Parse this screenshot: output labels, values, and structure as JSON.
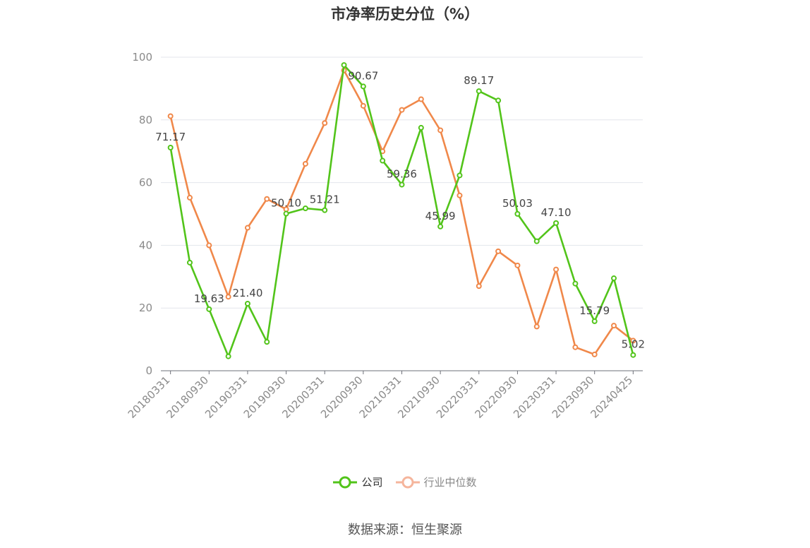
{
  "chart_data": {
    "type": "line",
    "title": "市净率历史分位（%）",
    "ylim": [
      0,
      100
    ],
    "yticks": [
      0,
      20,
      40,
      60,
      80,
      100
    ],
    "grid": true,
    "legend_position": "bottom",
    "x": [
      "20180331",
      "20180630",
      "20180930",
      "20181231",
      "20190331",
      "20190630",
      "20190930",
      "20191231",
      "20200331",
      "20200630",
      "20200930",
      "20201231",
      "20210331",
      "20210630",
      "20210930",
      "20211231",
      "20220331",
      "20220630",
      "20220930",
      "20221231",
      "20230331",
      "20230630",
      "20230930",
      "20231231",
      "20240425"
    ],
    "xtick_labels": [
      "20180331",
      "20180930",
      "20190331",
      "20190930",
      "20200331",
      "20200930",
      "20210331",
      "20210930",
      "20220331",
      "20220930",
      "20230331",
      "20230930",
      "20240425"
    ],
    "series": [
      {
        "name": "公司",
        "color": "#52c41a",
        "values": [
          71.17,
          34.5,
          19.63,
          4.6,
          21.4,
          9.2,
          50.1,
          51.8,
          51.21,
          97.5,
          90.67,
          67.0,
          59.36,
          77.5,
          45.99,
          62.3,
          89.17,
          86.2,
          50.03,
          41.3,
          47.1,
          27.8,
          15.79,
          29.5,
          5.02
        ],
        "labels": {
          "0": "71.17",
          "2": "19.63",
          "4": "21.40",
          "6": "50.10",
          "8": "51.21",
          "10": "90.67",
          "12": "59.36",
          "14": "45.99",
          "16": "89.17",
          "18": "50.03",
          "20": "47.10",
          "22": "15.79",
          "24": "5.02"
        }
      },
      {
        "name": "行业中位数",
        "color": "#f0884a",
        "values": [
          81.2,
          55.2,
          40.0,
          23.6,
          45.6,
          54.8,
          51.5,
          66.0,
          79.0,
          95.8,
          84.5,
          70.0,
          83.2,
          86.6,
          76.7,
          55.9,
          27.0,
          38.1,
          33.6,
          14.1,
          32.3,
          7.5,
          5.2,
          14.4,
          9.6
        ]
      }
    ]
  },
  "legend": {
    "items": [
      {
        "label": "公司",
        "color": "#52c41a"
      },
      {
        "label": "行业中位数",
        "color": "#f5b59c"
      }
    ]
  },
  "source_text": "数据来源：恒生聚源"
}
